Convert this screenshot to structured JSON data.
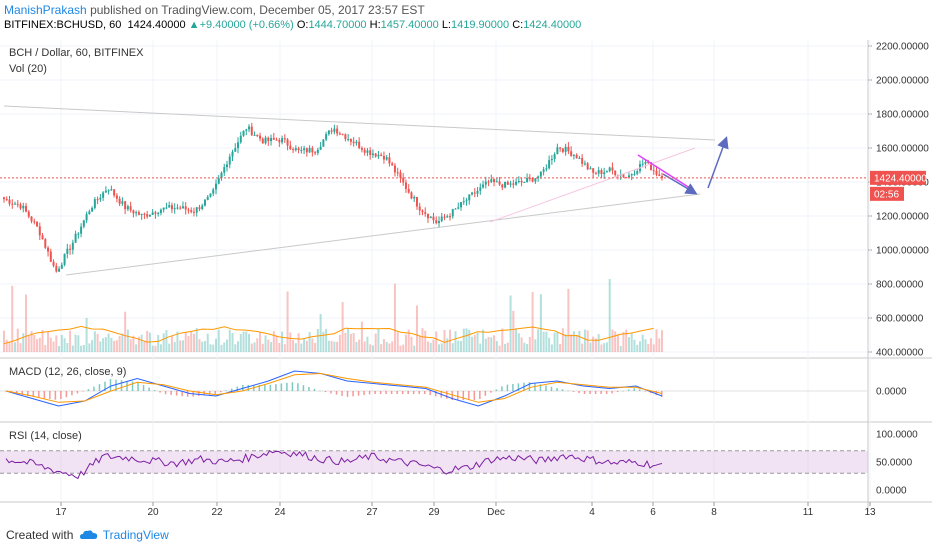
{
  "header": {
    "author": "ManishPrakash",
    "published": "published on TradingView.com, December 05, 2017 23:57 EST",
    "symbol": "BITFINEX:BCHUSD, 60",
    "last": "1424.40000",
    "change_arrow": "▲",
    "change": "+9.40000 (+0.66%)",
    "o_label": "O:",
    "o_value": "1444.70000",
    "h_label": "H:",
    "h_value": "1457.40000",
    "l_label": "L:",
    "l_value": "1419.90000",
    "c_label": "C:",
    "c_value": "1424.40000"
  },
  "footer": {
    "created_with": "Created with",
    "brand": "TradingView"
  },
  "colors": {
    "up": "#26a69a",
    "down": "#ef5350",
    "price_line": "#ef5350",
    "macd": "#2962ff",
    "signal": "#ff9800",
    "rsi": "#7b1fa2",
    "rsi_band": "#e1bee7",
    "trend": "#c9c9c9",
    "arrow": "#5c6bc0",
    "magenta": "#e040fb"
  },
  "chart_data": [
    {
      "type": "candlestick",
      "title": "BCH / Dollar, 60, BITFINEX",
      "indicator_label": "Vol (20)",
      "ylim": [
        400,
        2200
      ],
      "y_ticks": [
        "2200.00000",
        "2000.00000",
        "1800.00000",
        "1600.00000",
        "1400.00000",
        "1200.00000",
        "1000.00000",
        "800.00000",
        "600.00000",
        "400.00000"
      ],
      "last_price_label": "1424.40000",
      "countdown_label": "02:56",
      "x_ticks": [
        "17",
        "20",
        "22",
        "24",
        "27",
        "29",
        "Dec",
        "4",
        "6",
        "8",
        "11",
        "13"
      ],
      "close_path": [
        1300,
        1260,
        1120,
        870,
        1050,
        1250,
        1370,
        1250,
        1200,
        1240,
        1250,
        1230,
        1320,
        1550,
        1720,
        1640,
        1650,
        1580,
        1590,
        1720,
        1650,
        1580,
        1550,
        1400,
        1250,
        1160,
        1230,
        1320,
        1400,
        1380,
        1400,
        1440,
        1610,
        1560,
        1450,
        1470,
        1430,
        1520,
        1424
      ]
    },
    {
      "type": "line",
      "title": "MACD (12, 26, close, 9)",
      "y_ticks": [
        "0.0000"
      ],
      "series": [
        {
          "name": "MACD",
          "values": [
            0,
            -30,
            -60,
            -40,
            20,
            50,
            20,
            -10,
            -20,
            10,
            40,
            80,
            70,
            40,
            30,
            20,
            10,
            -30,
            -60,
            -20,
            30,
            40,
            20,
            10,
            20,
            -20
          ]
        },
        {
          "name": "Signal",
          "values": [
            0,
            -20,
            -45,
            -40,
            0,
            35,
            25,
            0,
            -15,
            0,
            30,
            65,
            70,
            50,
            35,
            25,
            15,
            -15,
            -45,
            -30,
            15,
            35,
            25,
            15,
            15,
            -10
          ]
        }
      ]
    },
    {
      "type": "line",
      "title": "RSI (14, close)",
      "ylim": [
        0,
        100
      ],
      "y_ticks": [
        "100.0000",
        "50.0000",
        "0.0000"
      ],
      "series": [
        {
          "name": "RSI",
          "values": [
            55,
            48,
            35,
            25,
            60,
            58,
            52,
            48,
            55,
            50,
            58,
            70,
            65,
            55,
            50,
            60,
            52,
            45,
            35,
            40,
            55,
            58,
            52,
            62,
            55,
            48,
            50,
            42
          ]
        }
      ]
    }
  ]
}
